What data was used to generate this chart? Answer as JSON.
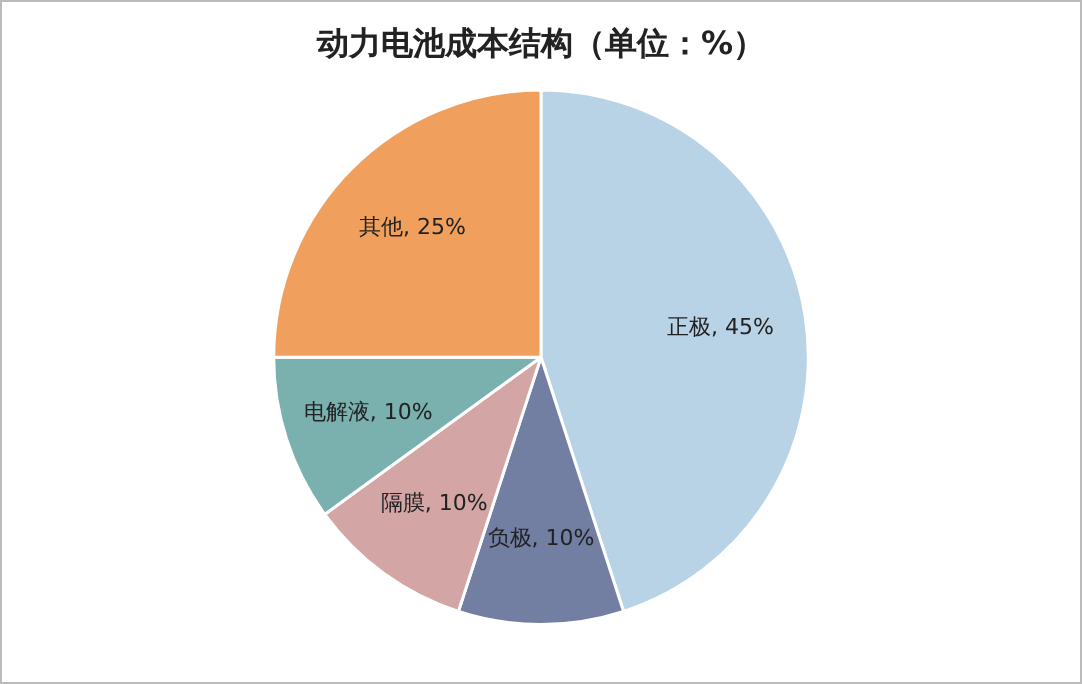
{
  "chart_data": {
    "type": "pie",
    "title": "动力电池成本结构（单位：%）",
    "categories": [
      "正极",
      "负极",
      "隔膜",
      "电解液",
      "其他"
    ],
    "values": [
      45,
      10,
      10,
      10,
      25
    ],
    "colors": [
      "#b7d3e5",
      "#737ea3",
      "#d4a5a5",
      "#7ab0ae",
      "#f0a05c"
    ],
    "value_labels": [
      "45%",
      "10%",
      "10%",
      "10%",
      "25%"
    ],
    "legend": false
  }
}
